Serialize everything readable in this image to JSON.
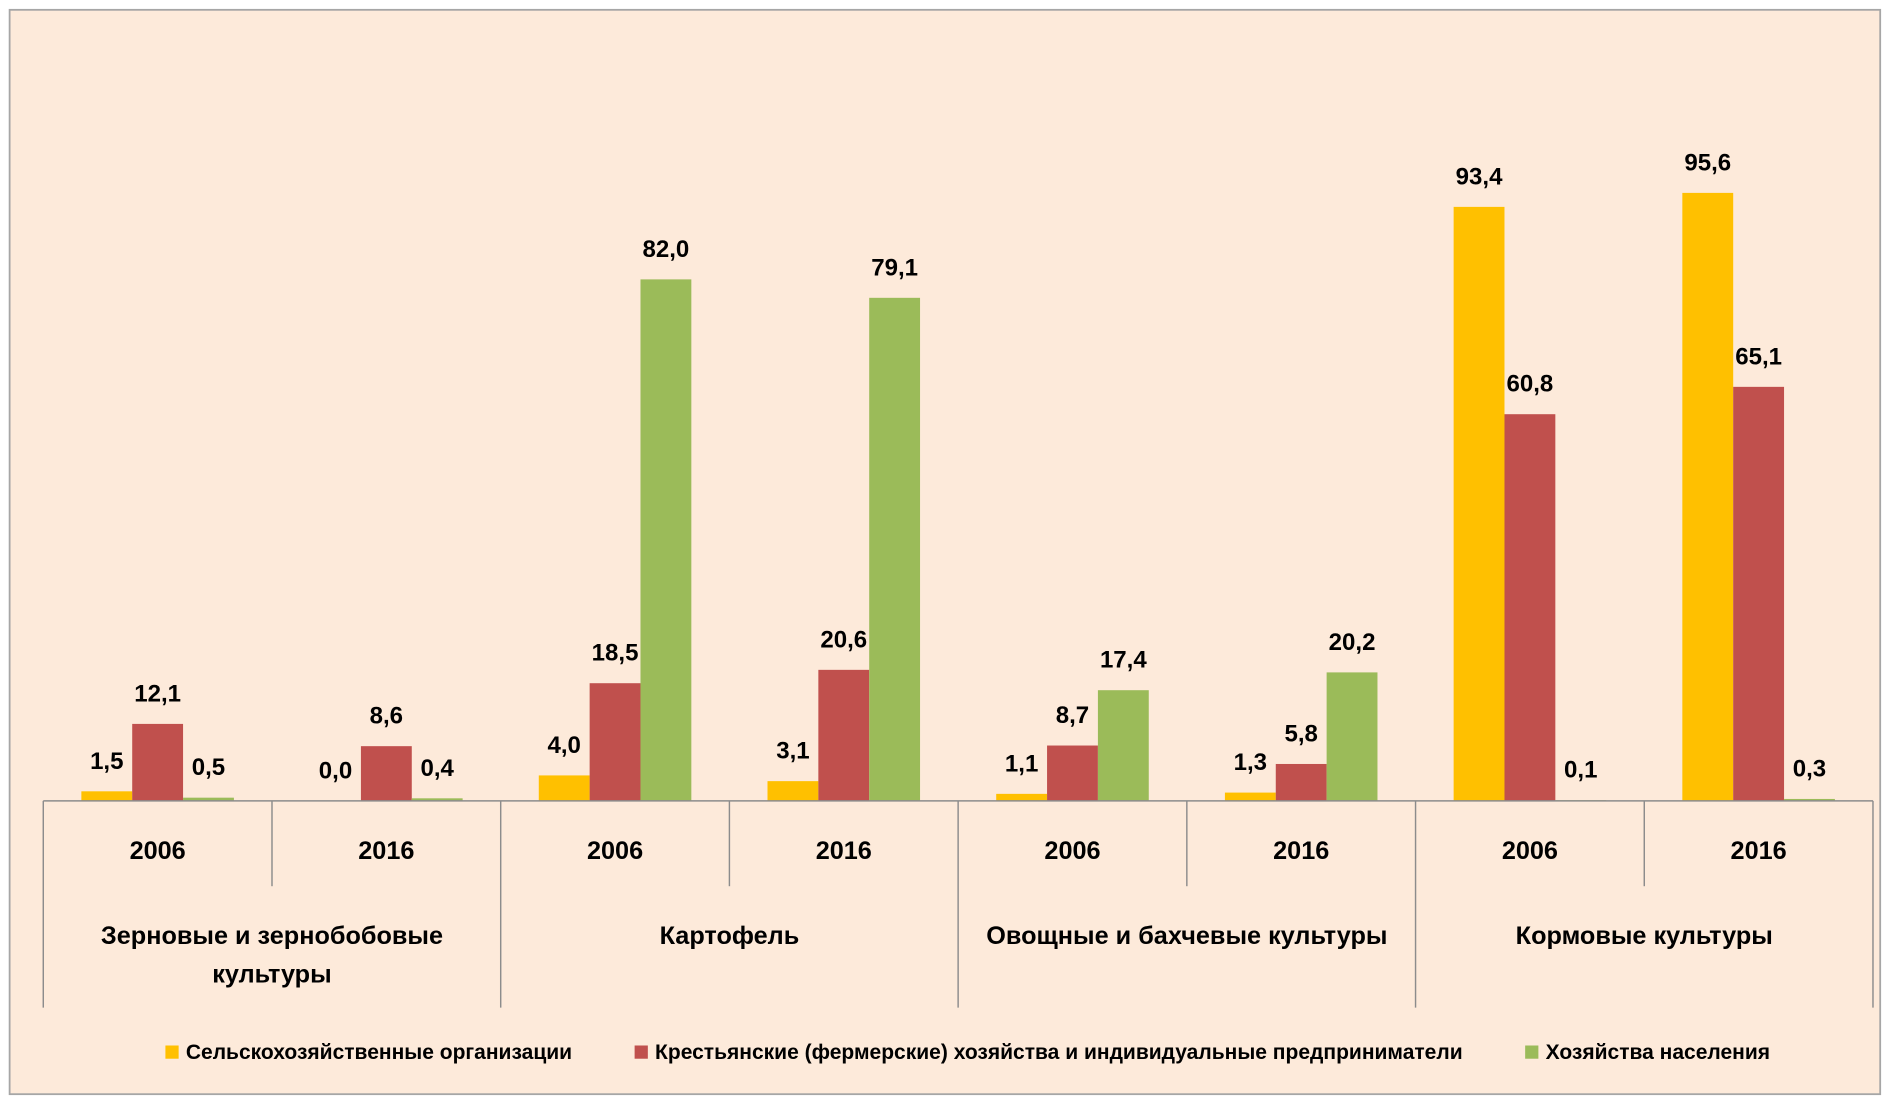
{
  "chart_data": {
    "type": "bar",
    "categories": [
      "2006",
      "2016",
      "2006",
      "2016",
      "2006",
      "2016",
      "2006",
      "2016"
    ],
    "groups": [
      "Зерновые и зернобобовые культуры",
      "Картофель",
      "Овощные и бахчевые культуры",
      "Кормовые культуры"
    ],
    "series": [
      {
        "name": "Сельскохозяйственные организации",
        "color": "#FFC000",
        "values": [
          1.5,
          0.0,
          4.0,
          3.1,
          1.1,
          1.3,
          93.4,
          95.6
        ],
        "value_labels": [
          "1,5",
          "0,0",
          "4,0",
          "3,1",
          "1,1",
          "1,3",
          "93,4",
          "95,6"
        ]
      },
      {
        "name": "Крестьянские (фермерские) хозяйства и индивидуальные предприниматели",
        "color": "#C0504D",
        "values": [
          12.1,
          8.6,
          18.5,
          20.6,
          8.7,
          5.8,
          60.8,
          65.1
        ],
        "value_labels": [
          "12,1",
          "8,6",
          "18,5",
          "20,6",
          "8,7",
          "5,8",
          "60,8",
          "65,1"
        ]
      },
      {
        "name": "Хозяйства населения",
        "color": "#9BBB59",
        "values": [
          0.5,
          0.4,
          82.0,
          79.1,
          17.4,
          20.2,
          0.1,
          0.3
        ],
        "value_labels": [
          "0,5",
          "0,4",
          "82,0",
          "79,1",
          "17,4",
          "20,2",
          "0,1",
          "0,3"
        ]
      }
    ],
    "legend": "bottom"
  }
}
